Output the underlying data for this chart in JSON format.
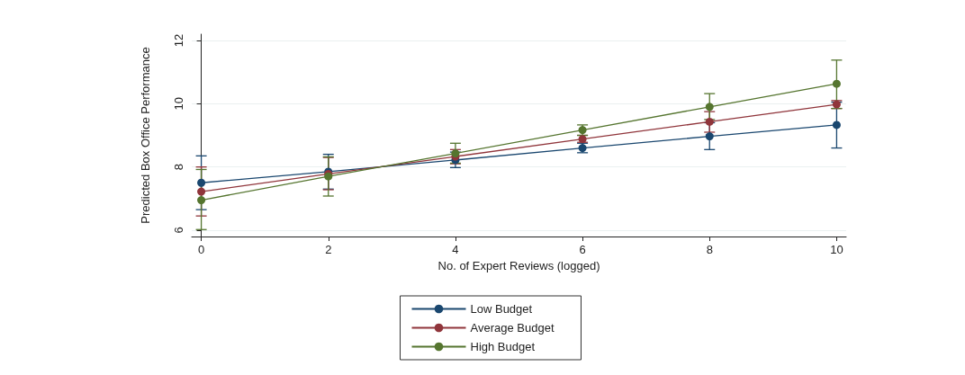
{
  "chart_data": {
    "type": "line",
    "xlabel": "No. of Expert Reviews (logged)",
    "ylabel": "Predicted Box Office Performance",
    "x": [
      0,
      2,
      4,
      6,
      8,
      10
    ],
    "xlim": [
      -0.15,
      10.15
    ],
    "xticks": [
      0,
      2,
      4,
      6,
      8,
      10
    ],
    "ylim": [
      5.8,
      12.2
    ],
    "yticks": [
      6,
      8,
      10,
      12
    ],
    "grid": "y",
    "legend": "bottom",
    "marker": "circle",
    "line_style": "solid",
    "series": [
      {
        "name": "Low Budget",
        "color": "#1a476f",
        "values": [
          7.5,
          7.85,
          8.22,
          8.6,
          8.97,
          9.33
        ],
        "errors": [
          [
            6.65,
            8.35
          ],
          [
            7.3,
            8.4
          ],
          [
            7.98,
            8.47
          ],
          [
            8.45,
            8.75
          ],
          [
            8.55,
            9.4
          ],
          [
            8.6,
            10.05
          ]
        ]
      },
      {
        "name": "Average Budget",
        "color": "#90353b",
        "values": [
          7.22,
          7.78,
          8.33,
          8.88,
          9.43,
          9.98
        ],
        "errors": [
          [
            6.45,
            8.0
          ],
          [
            7.28,
            8.3
          ],
          [
            8.1,
            8.55
          ],
          [
            8.78,
            9.0
          ],
          [
            9.1,
            9.75
          ],
          [
            9.85,
            10.1
          ]
        ]
      },
      {
        "name": "High Budget",
        "color": "#55752f",
        "values": [
          6.95,
          7.7,
          8.43,
          9.17,
          9.9,
          10.63
        ],
        "errors": [
          [
            6.02,
            7.92
          ],
          [
            7.08,
            8.32
          ],
          [
            8.12,
            8.75
          ],
          [
            9.0,
            9.33
          ],
          [
            9.5,
            10.32
          ],
          [
            9.85,
            11.38
          ]
        ]
      }
    ]
  }
}
